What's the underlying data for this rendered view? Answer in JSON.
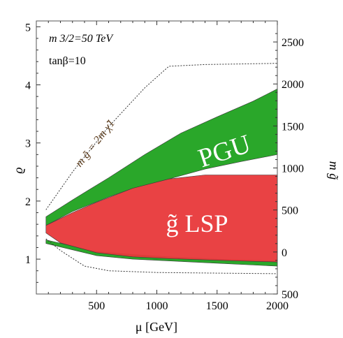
{
  "chart_data": {
    "type": "area",
    "title": "",
    "xlabel": "μ [GeV]",
    "ylabel": "ϱ",
    "y2label": "m g̃",
    "xlim": [
      0,
      2000
    ],
    "ylim": [
      0.4,
      5.1
    ],
    "y2lim": [
      -500,
      2750
    ],
    "grid": false,
    "x_ticks": [
      500,
      1000,
      1500,
      2000
    ],
    "x_tick_labels": [
      "500",
      "1000",
      "1500",
      "2000"
    ],
    "y_ticks": [
      1,
      2,
      3,
      4,
      5
    ],
    "y_tick_labels": [
      "1",
      "2",
      "3",
      "4",
      "5"
    ],
    "y2_ticks": [
      2500,
      2000,
      1500,
      1000,
      500,
      0,
      -500
    ],
    "y2_tick_labels": [
      "2500",
      "2000",
      "1500",
      "1000",
      "500",
      "0",
      "500"
    ],
    "annotations": {
      "m32": "m 3/2=50 TeV",
      "tanbeta": "tanβ=10",
      "curve": "m g̃ = 2m χ̃1",
      "pgu": "PGU",
      "lsp": "g̃ LSP"
    },
    "series": [
      {
        "name": "PGU",
        "color": "#1fa21f",
        "kind": "band",
        "upper": [
          [
            80,
            1.73
          ],
          [
            300,
            2.02
          ],
          [
            600,
            2.4
          ],
          [
            900,
            2.8
          ],
          [
            1200,
            3.17
          ],
          [
            1500,
            3.45
          ],
          [
            1800,
            3.72
          ],
          [
            2000,
            3.93
          ]
        ],
        "lower": [
          [
            80,
            1.58
          ],
          [
            300,
            1.82
          ],
          [
            600,
            2.07
          ],
          [
            800,
            2.22
          ],
          [
            1100,
            2.38
          ],
          [
            1400,
            2.55
          ],
          [
            1700,
            2.68
          ],
          [
            2000,
            2.8
          ]
        ]
      },
      {
        "name": "PGU lower",
        "color": "#1fa21f",
        "kind": "band",
        "upper": [
          [
            80,
            1.33
          ],
          [
            500,
            1.13
          ],
          [
            800,
            1.08
          ],
          [
            1100,
            1.04
          ],
          [
            1500,
            1.0
          ],
          [
            2000,
            0.97
          ]
        ],
        "lower": [
          [
            80,
            1.27
          ],
          [
            500,
            1.06
          ],
          [
            800,
            1.0
          ],
          [
            1100,
            0.97
          ],
          [
            1500,
            0.93
          ],
          [
            2000,
            0.88
          ]
        ]
      },
      {
        "name": "gluino LSP",
        "color": "#e8383a",
        "kind": "band",
        "upper": [
          [
            80,
            1.58
          ],
          [
            300,
            1.8
          ],
          [
            500,
            1.98
          ],
          [
            800,
            2.22
          ],
          [
            1100,
            2.38
          ],
          [
            1400,
            2.45
          ],
          [
            2000,
            2.45
          ]
        ],
        "lower": [
          [
            80,
            1.45
          ],
          [
            200,
            1.28
          ],
          [
            500,
            1.11
          ],
          [
            800,
            1.04
          ],
          [
            1100,
            1.01
          ],
          [
            1500,
            0.98
          ],
          [
            2000,
            0.95
          ]
        ]
      },
      {
        "name": "mgluino = 2 mchi1",
        "color": "#333333",
        "kind": "dotted",
        "upper": [
          [
            80,
            1.85
          ],
          [
            300,
            2.5
          ],
          [
            600,
            3.28
          ],
          [
            900,
            3.95
          ],
          [
            1100,
            4.32
          ],
          [
            1400,
            4.35
          ],
          [
            2000,
            4.37
          ]
        ],
        "lower": [
          [
            80,
            1.35
          ],
          [
            200,
            1.15
          ],
          [
            400,
            0.88
          ],
          [
            600,
            0.8
          ],
          [
            1000,
            0.77
          ],
          [
            1500,
            0.76
          ],
          [
            2000,
            0.75
          ]
        ]
      }
    ]
  }
}
